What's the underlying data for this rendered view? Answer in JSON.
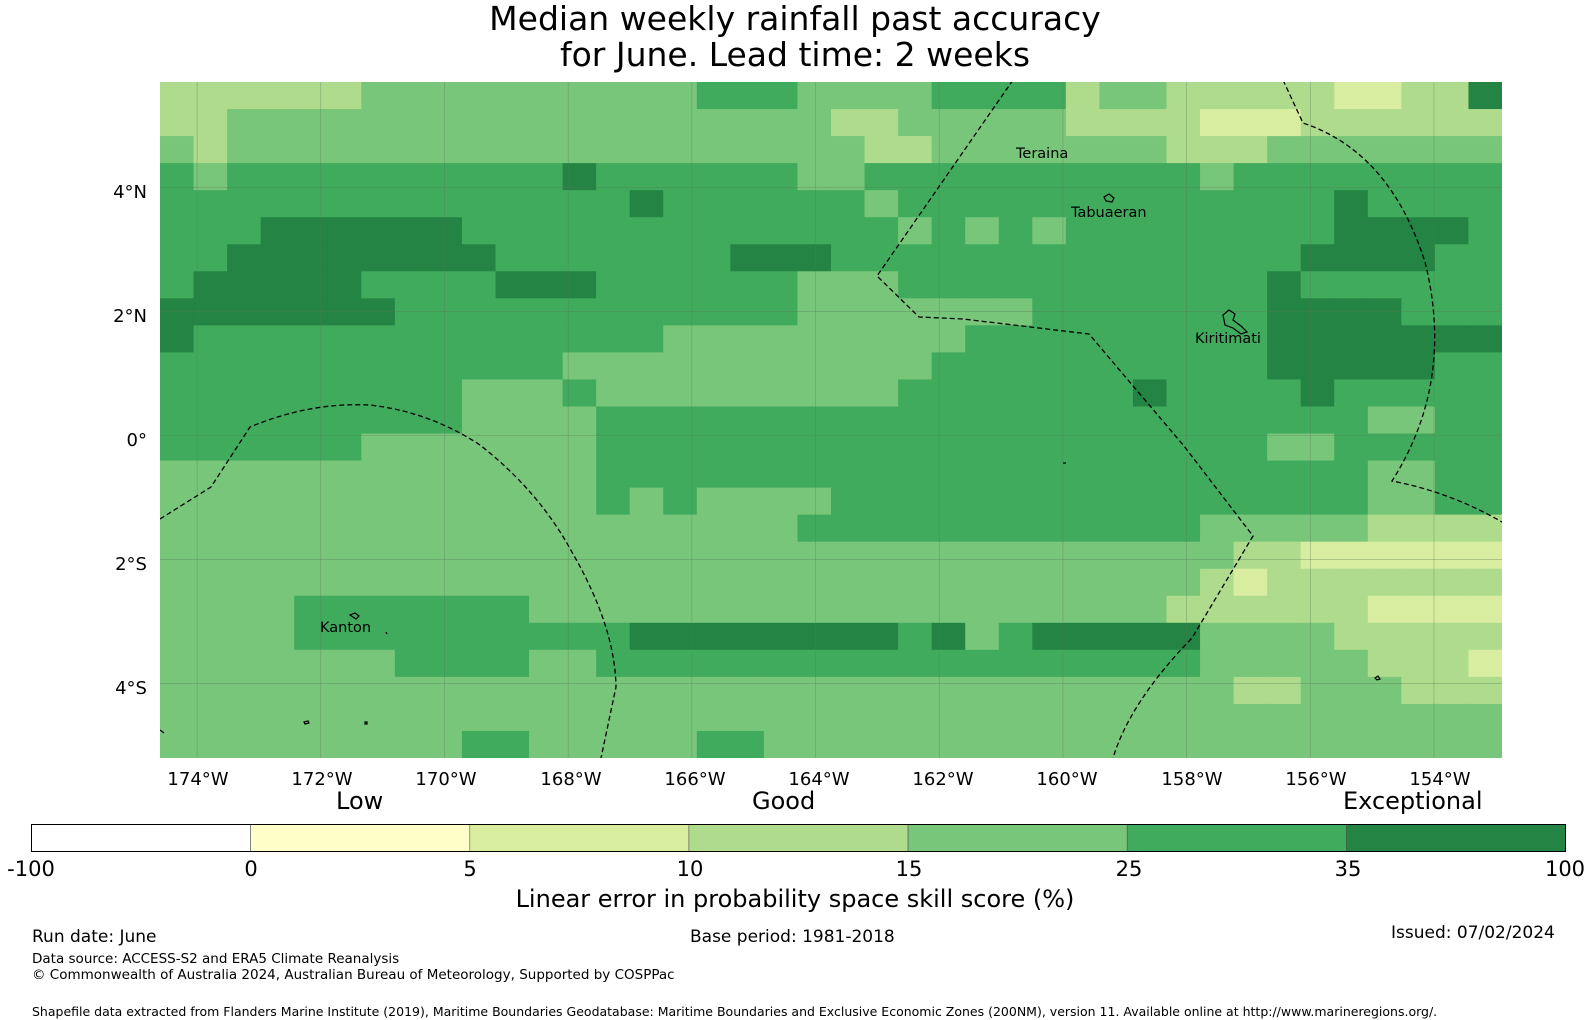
{
  "title": {
    "line1": "Median weekly rainfall past accuracy",
    "line2": "for June. Lead time: 2 weeks"
  },
  "map": {
    "lon_range": [
      -174.6,
      -152.9
    ],
    "lat_range": [
      -5.2,
      5.7
    ],
    "x_ticks": [
      "174°W",
      "172°W",
      "170°W",
      "168°W",
      "166°W",
      "164°W",
      "162°W",
      "160°W",
      "158°W",
      "156°W",
      "154°W"
    ],
    "y_ticks": [
      "4°N",
      "2°N",
      "0°",
      "2°S",
      "4°S"
    ],
    "places": [
      "Teraina",
      "Tabuaeran",
      "Kiritimati",
      "Kanton"
    ],
    "colors": [
      "#ffffff",
      "#fefec8",
      "#d9eda0",
      "#aedc8c",
      "#78c679",
      "#41ab5d",
      "#238443"
    ],
    "grid_rows": [
      "3333334444444444555444455553443333322336",
      "3344444444444444444433444443333222333333",
      "4344444444444444444443344444443334444444",
      "5455555555556555555445555555555455555555",
      "5555555555555565555554555555555555565555",
      "5556666665555555555555454545555555566665",
      "5566666666555555566655555555555555666655",
      "5666665555666555555444555555555556555555",
      "6666666555555555555444444455555556666555",
      "6555555555555554444444445555555556666666",
      "5555555555554444444444455555555556666655",
      "5555555554445444444444555555565555655555",
      "5555555554444555555555555555555555554455",
      "5555554444444555555555555555555554455555",
      "4444444444444555555555555555555555554455",
      "4444444444444545444455555555555555554455",
      "4444444444444444444555555555555444443333",
      "4444444444444444444444444444444433222222",
      "4444444444444444444444444444444323333333",
      "4444555555544444444444444444443333332222",
      "4444555555555566666666564566666444433333",
      "4444444555544555555555555555555444443332",
      "4444444444444444444444444444444433444333",
      "4444444444444444444444444444444444444444",
      "4444444445544444554444444444444444444444"
    ]
  },
  "colorbar": {
    "categories": [
      "Low",
      "Good",
      "Exceptional"
    ],
    "ticks": [
      "-100",
      "0",
      "5",
      "10",
      "15",
      "25",
      "35",
      "100"
    ],
    "colors": [
      "#ffffff",
      "#fefec8",
      "#d9eda0",
      "#aedc8c",
      "#78c679",
      "#41ab5d",
      "#238443"
    ],
    "label": "Linear error in probability space skill score (%)"
  },
  "footer": {
    "run_date": "Run date: June",
    "base_period": "Base period: 1981-2018",
    "issued": "Issued: 07/02/2024",
    "data_source": "Data source: ACCESS-S2 and ERA5 Climate Reanalysis",
    "copyright": "© Commonwealth of Australia 2024, Australian Bureau of Meteorology, Supported by COSPPac",
    "shapefile": "Shapefile data extracted from Flanders Marine Institute (2019), Maritime Boundaries Geodatabase: Maritime Boundaries and Exclusive Economic Zones (200NM), version 11. Available online at http://www.marineregions.org/."
  }
}
